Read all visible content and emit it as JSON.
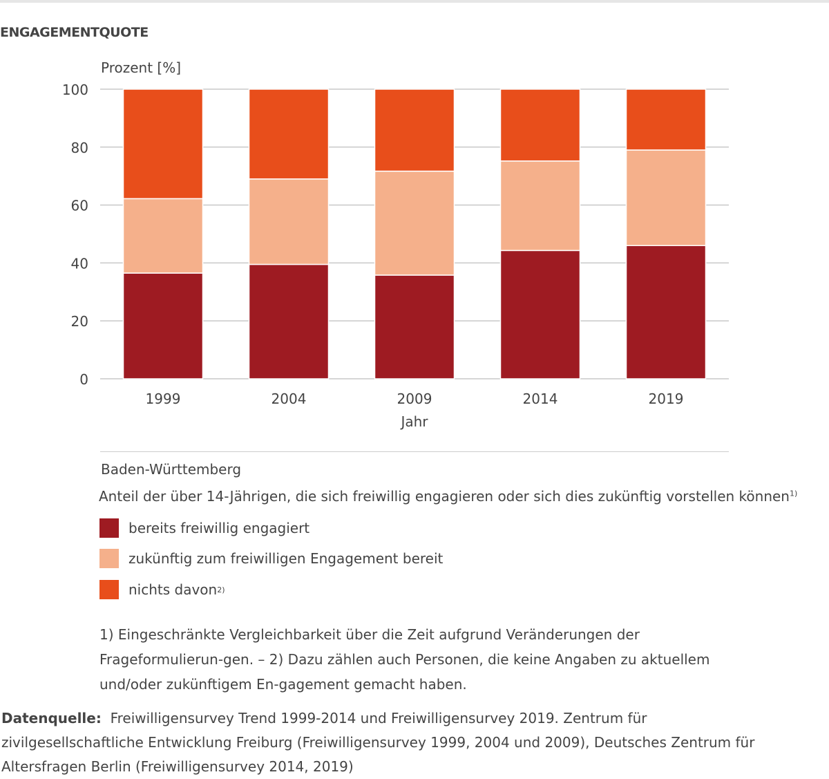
{
  "title": "ENGAGEMENTQUOTE",
  "chart_data": {
    "type": "bar",
    "stacked": true,
    "ylabel": "Prozent [%]",
    "xlabel": "Jahr",
    "ylim": [
      0,
      100
    ],
    "yticks": [
      0,
      20,
      40,
      60,
      80,
      100
    ],
    "grid": true,
    "categories": [
      "1999",
      "2004",
      "2009",
      "2014",
      "2019"
    ],
    "series": [
      {
        "name": "bereits freiwillig engagiert",
        "color": "#9e1b22",
        "values": [
          36.5,
          39.5,
          35.8,
          44.3,
          46.0
        ]
      },
      {
        "name": "zukünftig zum freiwilligen Engagement bereit",
        "color": "#f5b08b",
        "values": [
          25.7,
          29.5,
          35.9,
          30.9,
          33.0
        ]
      },
      {
        "name": "nichts davon",
        "name_sup": "2)",
        "color": "#e84e1b",
        "values": [
          37.8,
          31.0,
          28.3,
          24.8,
          21.0
        ]
      }
    ],
    "legend_placement": "bottom"
  },
  "region": "Baden-Württemberg",
  "subtitle": "Anteil der über 14-Jährigen, die sich freiwillig engagieren oder sich dies zukünftig vorstellen können",
  "subtitle_sup": "1)",
  "footnote": "1) Eingeschränkte Vergleichbarkeit über die Zeit aufgrund Veränderungen der Frageformulierun-gen. – 2) Dazu zählen auch Personen, die keine Angaben zu aktuellem und/oder zukünftigem En-gagement gemacht haben.",
  "source_label": "Datenquelle:",
  "source_text": "Freiwilligensurvey Trend 1999-2014 und Freiwilligensurvey 2019. Zentrum für zivilgesellschaftliche Entwicklung Freiburg (Freiwilligensurvey 1999, 2004 und 2009), Deutsches Zentrum für Altersfragen Berlin (Freiwilligensurvey 2014, 2019)"
}
